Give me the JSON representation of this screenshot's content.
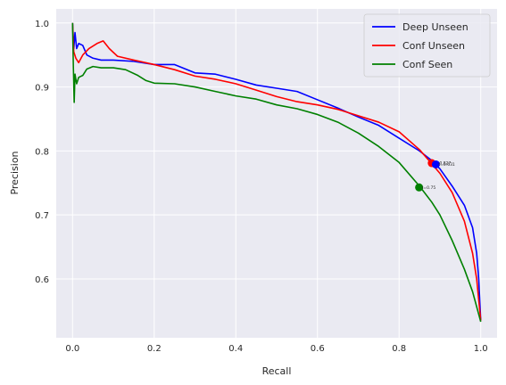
{
  "chart_data": {
    "type": "line",
    "xlabel": "Recall",
    "ylabel": "Precision",
    "xlim": [
      -0.04,
      1.04
    ],
    "ylim": [
      0.508,
      1.022
    ],
    "xticks": [
      0.0,
      0.2,
      0.4,
      0.6,
      0.8,
      1.0
    ],
    "xtick_labels": [
      "0.0",
      "0.2",
      "0.4",
      "0.6",
      "0.8",
      "1.0"
    ],
    "yticks": [
      0.6,
      0.7,
      0.8,
      0.9,
      1.0
    ],
    "ytick_labels": [
      "0.6",
      "0.7",
      "0.8",
      "0.9",
      "1.0"
    ],
    "grid": true,
    "legend_position": "top-right",
    "series": [
      {
        "name": "Deep Unseen",
        "color": "#0000ff",
        "points": [
          [
            0.0,
            1.0
          ],
          [
            0.003,
            0.96
          ],
          [
            0.006,
            0.985
          ],
          [
            0.01,
            0.96
          ],
          [
            0.015,
            0.968
          ],
          [
            0.025,
            0.965
          ],
          [
            0.035,
            0.95
          ],
          [
            0.05,
            0.945
          ],
          [
            0.07,
            0.942
          ],
          [
            0.1,
            0.942
          ],
          [
            0.15,
            0.94
          ],
          [
            0.2,
            0.935
          ],
          [
            0.25,
            0.935
          ],
          [
            0.3,
            0.922
          ],
          [
            0.35,
            0.92
          ],
          [
            0.4,
            0.912
          ],
          [
            0.45,
            0.903
          ],
          [
            0.5,
            0.898
          ],
          [
            0.55,
            0.893
          ],
          [
            0.6,
            0.88
          ],
          [
            0.65,
            0.867
          ],
          [
            0.7,
            0.853
          ],
          [
            0.75,
            0.84
          ],
          [
            0.8,
            0.82
          ],
          [
            0.85,
            0.8
          ],
          [
            0.88,
            0.785
          ],
          [
            0.9,
            0.772
          ],
          [
            0.93,
            0.745
          ],
          [
            0.96,
            0.715
          ],
          [
            0.98,
            0.68
          ],
          [
            0.99,
            0.64
          ],
          [
            0.995,
            0.6
          ],
          [
            1.0,
            0.535
          ]
        ]
      },
      {
        "name": "Conf Unseen",
        "color": "#ff0000",
        "points": [
          [
            0.0,
            1.0
          ],
          [
            0.003,
            0.955
          ],
          [
            0.008,
            0.945
          ],
          [
            0.015,
            0.938
          ],
          [
            0.025,
            0.95
          ],
          [
            0.04,
            0.96
          ],
          [
            0.06,
            0.968
          ],
          [
            0.075,
            0.972
          ],
          [
            0.09,
            0.96
          ],
          [
            0.11,
            0.948
          ],
          [
            0.15,
            0.942
          ],
          [
            0.2,
            0.935
          ],
          [
            0.25,
            0.927
          ],
          [
            0.3,
            0.917
          ],
          [
            0.35,
            0.912
          ],
          [
            0.4,
            0.905
          ],
          [
            0.45,
            0.895
          ],
          [
            0.5,
            0.885
          ],
          [
            0.55,
            0.877
          ],
          [
            0.6,
            0.872
          ],
          [
            0.65,
            0.865
          ],
          [
            0.7,
            0.855
          ],
          [
            0.75,
            0.845
          ],
          [
            0.8,
            0.83
          ],
          [
            0.85,
            0.802
          ],
          [
            0.88,
            0.78
          ],
          [
            0.9,
            0.765
          ],
          [
            0.93,
            0.735
          ],
          [
            0.96,
            0.69
          ],
          [
            0.98,
            0.64
          ],
          [
            0.99,
            0.6
          ],
          [
            1.0,
            0.535
          ]
        ]
      },
      {
        "name": "Conf Seen",
        "color": "#008000",
        "points": [
          [
            0.0,
            1.0
          ],
          [
            0.002,
            0.93
          ],
          [
            0.004,
            0.876
          ],
          [
            0.006,
            0.92
          ],
          [
            0.01,
            0.905
          ],
          [
            0.015,
            0.915
          ],
          [
            0.025,
            0.918
          ],
          [
            0.035,
            0.928
          ],
          [
            0.05,
            0.932
          ],
          [
            0.07,
            0.93
          ],
          [
            0.1,
            0.93
          ],
          [
            0.13,
            0.927
          ],
          [
            0.16,
            0.918
          ],
          [
            0.18,
            0.91
          ],
          [
            0.2,
            0.906
          ],
          [
            0.25,
            0.905
          ],
          [
            0.3,
            0.9
          ],
          [
            0.35,
            0.893
          ],
          [
            0.4,
            0.886
          ],
          [
            0.45,
            0.881
          ],
          [
            0.5,
            0.872
          ],
          [
            0.55,
            0.866
          ],
          [
            0.6,
            0.857
          ],
          [
            0.65,
            0.845
          ],
          [
            0.7,
            0.828
          ],
          [
            0.75,
            0.807
          ],
          [
            0.8,
            0.782
          ],
          [
            0.85,
            0.745
          ],
          [
            0.88,
            0.72
          ],
          [
            0.9,
            0.7
          ],
          [
            0.93,
            0.66
          ],
          [
            0.96,
            0.615
          ],
          [
            0.98,
            0.58
          ],
          [
            1.0,
            0.533
          ]
        ]
      }
    ],
    "markers": [
      {
        "x": 0.88,
        "y": 0.781,
        "color": "#ff0000",
        "label": "t=0.827"
      },
      {
        "x": 0.89,
        "y": 0.779,
        "color": "#0000ff",
        "label": "t=0.631"
      },
      {
        "x": 0.849,
        "y": 0.743,
        "color": "#008000",
        "label": "t=0.75"
      }
    ]
  }
}
